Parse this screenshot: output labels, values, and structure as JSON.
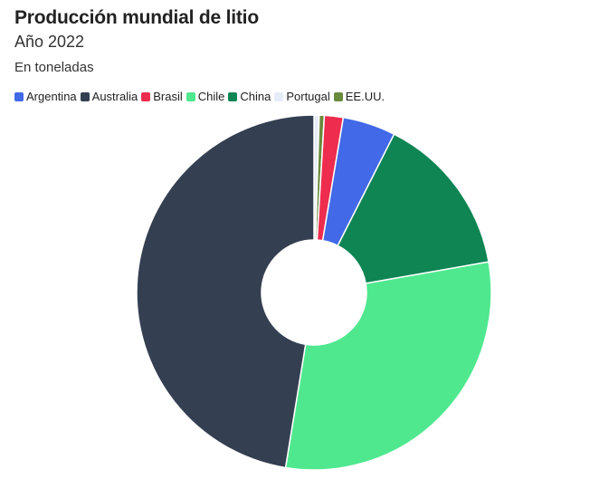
{
  "chart_data": {
    "type": "pie",
    "title": "Producción mundial de litio",
    "subtitle": "Año 2022",
    "unit_label": "En toneladas",
    "legend_position": "top-left",
    "donut": true,
    "categories": [
      "Argentina",
      "Australia",
      "Brasil",
      "Chile",
      "China",
      "Portugal",
      "EE.UU."
    ],
    "values": [
      6200,
      61000,
      2200,
      39000,
      19000,
      600,
      600
    ],
    "colors": [
      "#4169e8",
      "#343f51",
      "#ee2c4e",
      "#4fe88e",
      "#0e8553",
      "#e6ecf7",
      "#6a8a3e"
    ],
    "slice_order": [
      "Portugal",
      "EE.UU.",
      "Brasil",
      "Argentina",
      "China",
      "Chile",
      "Australia"
    ]
  }
}
